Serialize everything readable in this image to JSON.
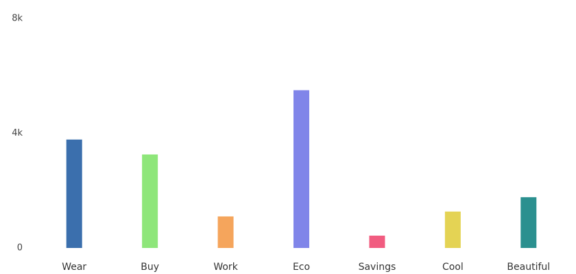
{
  "chart_data": {
    "type": "bar",
    "categories": [
      "Wear",
      "Buy",
      "Work",
      "Eco",
      "Savings",
      "Cool",
      "Beautiful"
    ],
    "values": [
      3780,
      3260,
      1100,
      5500,
      430,
      1270,
      1770
    ],
    "colors": [
      "#3b6fad",
      "#8ee67a",
      "#f5a55c",
      "#8085e9",
      "#f15c80",
      "#e4d354",
      "#2b908f"
    ],
    "ylim": [
      0,
      8000
    ],
    "yticks": [
      0,
      {
        "value": 4000,
        "label": "4k"
      },
      {
        "value": 8000,
        "label": "8k"
      }
    ],
    "grid": false
  }
}
